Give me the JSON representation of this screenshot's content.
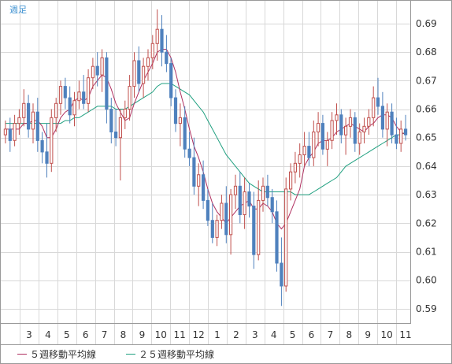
{
  "chart_data": {
    "type": "candlestick",
    "period_label": "週足",
    "y_ticks": [
      "0.69",
      "0.68",
      "0.67",
      "0.66",
      "0.65",
      "0.64",
      "0.63",
      "0.62",
      "0.61",
      "0.60",
      "0.59"
    ],
    "y_tick_values": [
      0.69,
      0.68,
      0.67,
      0.66,
      0.65,
      0.64,
      0.63,
      0.62,
      0.61,
      0.6,
      0.59
    ],
    "ylim": [
      0.585,
      0.698
    ],
    "x_ticks": [
      "3",
      "4",
      "5",
      "6",
      "7",
      "8",
      "9",
      "10",
      "11",
      "12",
      "1",
      "2",
      "3",
      "4",
      "5",
      "6",
      "7",
      "8",
      "9",
      "10",
      "11"
    ],
    "grid": true,
    "colors": {
      "up": "#c0504d",
      "down": "#4f81bd",
      "ma5": "#b03060",
      "ma25": "#20a080",
      "grid": "#d8d8d8"
    },
    "legend": [
      {
        "name": "５週移動平均線",
        "color": "#b03060"
      },
      {
        "name": "２５週移動平均線",
        "color": "#20a080"
      }
    ],
    "candles": [
      [
        0.651,
        0.656,
        0.648,
        0.653
      ],
      [
        0.653,
        0.657,
        0.645,
        0.649
      ],
      [
        0.649,
        0.658,
        0.647,
        0.655
      ],
      [
        0.655,
        0.66,
        0.651,
        0.657
      ],
      [
        0.657,
        0.667,
        0.654,
        0.662
      ],
      [
        0.662,
        0.665,
        0.65,
        0.653
      ],
      [
        0.653,
        0.662,
        0.648,
        0.659
      ],
      [
        0.659,
        0.664,
        0.645,
        0.649
      ],
      [
        0.649,
        0.652,
        0.641,
        0.645
      ],
      [
        0.645,
        0.655,
        0.636,
        0.641
      ],
      [
        0.641,
        0.66,
        0.638,
        0.657
      ],
      [
        0.657,
        0.664,
        0.652,
        0.662
      ],
      [
        0.662,
        0.67,
        0.658,
        0.668
      ],
      [
        0.668,
        0.671,
        0.66,
        0.664
      ],
      [
        0.664,
        0.668,
        0.655,
        0.658
      ],
      [
        0.658,
        0.666,
        0.654,
        0.663
      ],
      [
        0.663,
        0.67,
        0.66,
        0.666
      ],
      [
        0.666,
        0.672,
        0.66,
        0.662
      ],
      [
        0.662,
        0.674,
        0.659,
        0.671
      ],
      [
        0.671,
        0.678,
        0.667,
        0.675
      ],
      [
        0.675,
        0.68,
        0.668,
        0.672
      ],
      [
        0.672,
        0.681,
        0.666,
        0.678
      ],
      [
        0.678,
        0.68,
        0.655,
        0.66
      ],
      [
        0.66,
        0.664,
        0.648,
        0.652
      ],
      [
        0.652,
        0.66,
        0.647,
        0.65
      ],
      [
        0.65,
        0.66,
        0.635,
        0.657
      ],
      [
        0.657,
        0.663,
        0.653,
        0.66
      ],
      [
        0.66,
        0.672,
        0.656,
        0.668
      ],
      [
        0.668,
        0.68,
        0.664,
        0.677
      ],
      [
        0.677,
        0.682,
        0.666,
        0.669
      ],
      [
        0.669,
        0.678,
        0.664,
        0.675
      ],
      [
        0.675,
        0.681,
        0.67,
        0.678
      ],
      [
        0.678,
        0.686,
        0.674,
        0.683
      ],
      [
        0.683,
        0.695,
        0.677,
        0.688
      ],
      [
        0.688,
        0.693,
        0.675,
        0.68
      ],
      [
        0.68,
        0.686,
        0.673,
        0.676
      ],
      [
        0.676,
        0.678,
        0.661,
        0.664
      ],
      [
        0.664,
        0.667,
        0.652,
        0.655
      ],
      [
        0.655,
        0.662,
        0.647,
        0.657
      ],
      [
        0.657,
        0.661,
        0.643,
        0.646
      ],
      [
        0.646,
        0.652,
        0.64,
        0.643
      ],
      [
        0.643,
        0.65,
        0.63,
        0.633
      ],
      [
        0.633,
        0.641,
        0.626,
        0.637
      ],
      [
        0.637,
        0.642,
        0.625,
        0.628
      ],
      [
        0.628,
        0.632,
        0.619,
        0.621
      ],
      [
        0.621,
        0.627,
        0.613,
        0.615
      ],
      [
        0.615,
        0.623,
        0.612,
        0.621
      ],
      [
        0.621,
        0.63,
        0.618,
        0.627
      ],
      [
        0.627,
        0.633,
        0.613,
        0.616
      ],
      [
        0.616,
        0.632,
        0.609,
        0.63
      ],
      [
        0.63,
        0.637,
        0.625,
        0.633
      ],
      [
        0.633,
        0.638,
        0.62,
        0.623
      ],
      [
        0.623,
        0.636,
        0.618,
        0.631
      ],
      [
        0.631,
        0.634,
        0.622,
        0.626
      ],
      [
        0.626,
        0.631,
        0.604,
        0.609
      ],
      [
        0.609,
        0.635,
        0.607,
        0.628
      ],
      [
        0.628,
        0.636,
        0.624,
        0.633
      ],
      [
        0.633,
        0.637,
        0.626,
        0.629
      ],
      [
        0.629,
        0.632,
        0.62,
        0.624
      ],
      [
        0.624,
        0.628,
        0.603,
        0.606
      ],
      [
        0.606,
        0.615,
        0.591,
        0.598
      ],
      [
        0.598,
        0.636,
        0.596,
        0.632
      ],
      [
        0.632,
        0.641,
        0.628,
        0.638
      ],
      [
        0.638,
        0.645,
        0.634,
        0.641
      ],
      [
        0.641,
        0.648,
        0.636,
        0.644
      ],
      [
        0.644,
        0.652,
        0.64,
        0.647
      ],
      [
        0.647,
        0.652,
        0.64,
        0.643
      ],
      [
        0.643,
        0.656,
        0.64,
        0.652
      ],
      [
        0.652,
        0.659,
        0.647,
        0.655
      ],
      [
        0.655,
        0.658,
        0.644,
        0.646
      ],
      [
        0.646,
        0.652,
        0.64,
        0.649
      ],
      [
        0.649,
        0.659,
        0.646,
        0.656
      ],
      [
        0.656,
        0.662,
        0.651,
        0.658
      ],
      [
        0.658,
        0.66,
        0.648,
        0.651
      ],
      [
        0.651,
        0.657,
        0.644,
        0.654
      ],
      [
        0.654,
        0.66,
        0.65,
        0.657
      ],
      [
        0.657,
        0.659,
        0.645,
        0.648
      ],
      [
        0.648,
        0.655,
        0.644,
        0.652
      ],
      [
        0.652,
        0.657,
        0.648,
        0.654
      ],
      [
        0.654,
        0.66,
        0.651,
        0.657
      ],
      [
        0.657,
        0.668,
        0.654,
        0.664
      ],
      [
        0.664,
        0.671,
        0.658,
        0.661
      ],
      [
        0.661,
        0.666,
        0.65,
        0.653
      ],
      [
        0.653,
        0.662,
        0.647,
        0.659
      ],
      [
        0.659,
        0.662,
        0.648,
        0.651
      ],
      [
        0.651,
        0.657,
        0.646,
        0.648
      ],
      [
        0.648,
        0.656,
        0.645,
        0.653
      ],
      [
        0.653,
        0.658,
        0.649,
        0.651
      ]
    ],
    "ma5": [
      0.653,
      0.653,
      0.653,
      0.653,
      0.655,
      0.655,
      0.656,
      0.656,
      0.654,
      0.65,
      0.65,
      0.653,
      0.657,
      0.659,
      0.66,
      0.663,
      0.664,
      0.663,
      0.664,
      0.668,
      0.67,
      0.672,
      0.671,
      0.667,
      0.662,
      0.659,
      0.656,
      0.657,
      0.662,
      0.666,
      0.67,
      0.673,
      0.676,
      0.68,
      0.681,
      0.681,
      0.678,
      0.673,
      0.666,
      0.66,
      0.653,
      0.647,
      0.643,
      0.638,
      0.632,
      0.627,
      0.624,
      0.622,
      0.62,
      0.622,
      0.624,
      0.626,
      0.627,
      0.628,
      0.625,
      0.625,
      0.627,
      0.626,
      0.624,
      0.62,
      0.618,
      0.62,
      0.624,
      0.628,
      0.632,
      0.64,
      0.643,
      0.645,
      0.648,
      0.649,
      0.649,
      0.65,
      0.652,
      0.653,
      0.654,
      0.655,
      0.654,
      0.653,
      0.652,
      0.654,
      0.655,
      0.657,
      0.658,
      0.658,
      0.657,
      0.654,
      0.652,
      0.651
    ],
    "ma25": [
      0.655,
      0.655,
      0.655,
      0.655,
      0.655,
      0.655,
      0.655,
      0.655,
      0.655,
      0.655,
      0.655,
      0.655,
      0.655,
      0.656,
      0.656,
      0.657,
      0.657,
      0.658,
      0.659,
      0.66,
      0.661,
      0.661,
      0.661,
      0.661,
      0.66,
      0.66,
      0.66,
      0.661,
      0.662,
      0.663,
      0.664,
      0.665,
      0.666,
      0.668,
      0.669,
      0.669,
      0.669,
      0.668,
      0.667,
      0.666,
      0.665,
      0.663,
      0.661,
      0.659,
      0.656,
      0.653,
      0.65,
      0.647,
      0.644,
      0.642,
      0.64,
      0.638,
      0.636,
      0.634,
      0.633,
      0.632,
      0.631,
      0.631,
      0.631,
      0.631,
      0.631,
      0.631,
      0.631,
      0.63,
      0.63,
      0.63,
      0.63,
      0.631,
      0.632,
      0.633,
      0.634,
      0.635,
      0.636,
      0.638,
      0.64,
      0.641,
      0.642,
      0.643,
      0.644,
      0.645,
      0.646,
      0.647,
      0.648,
      0.649,
      0.65,
      0.651,
      0.651,
      0.652
    ]
  }
}
